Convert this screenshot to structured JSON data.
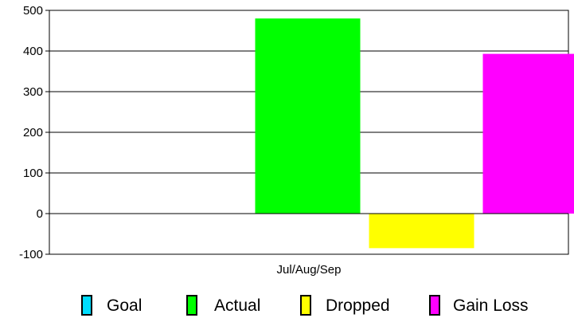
{
  "chart_data": {
    "type": "bar",
    "categories": [
      "Jul/Aug/Sep"
    ],
    "series": [
      {
        "name": "Goal",
        "values": [
          0
        ],
        "color": "#00ddff"
      },
      {
        "name": "Actual",
        "values": [
          480
        ],
        "color": "#00ff00"
      },
      {
        "name": "Dropped",
        "values": [
          -85
        ],
        "color": "#ffff00"
      },
      {
        "name": "Gain Loss",
        "values": [
          393
        ],
        "color": "#ff00ff"
      }
    ],
    "title": "",
    "xlabel": "",
    "ylabel": "",
    "ylim": [
      -100,
      500
    ],
    "yticks": [
      -100,
      0,
      100,
      200,
      300,
      400,
      500
    ],
    "grid": true,
    "legend": "bottom"
  }
}
